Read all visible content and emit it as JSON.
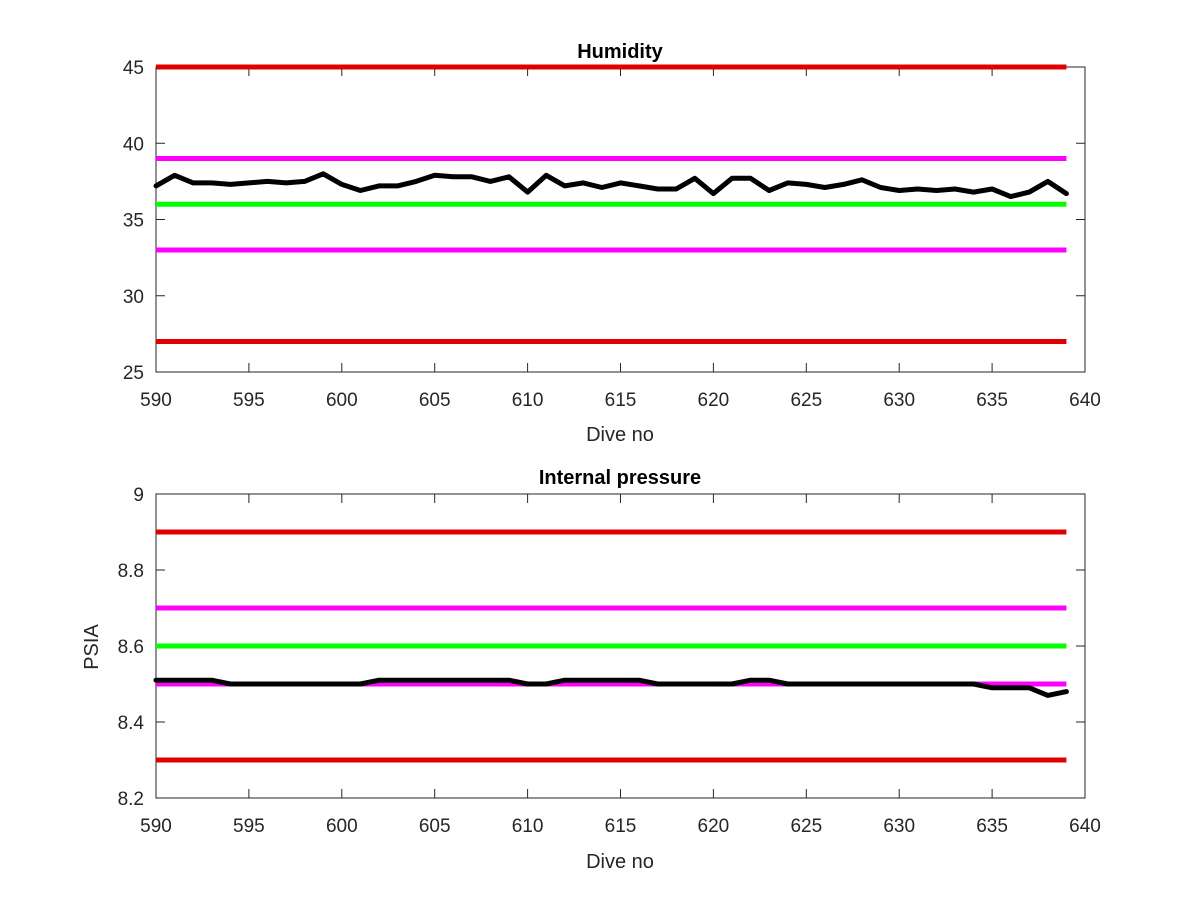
{
  "chart_data": [
    {
      "type": "line",
      "title": "Humidity",
      "xlabel": "Dive no",
      "ylabel": "",
      "xlim": [
        590,
        640
      ],
      "ylim": [
        25,
        45
      ],
      "xticks": [
        590,
        595,
        600,
        605,
        610,
        615,
        620,
        625,
        630,
        635,
        640
      ],
      "yticks": [
        25,
        30,
        35,
        40,
        45
      ],
      "grid": false,
      "series": [
        {
          "color": "#000000",
          "x": [
            590,
            591,
            592,
            593,
            594,
            595,
            596,
            597,
            598,
            599,
            600,
            601,
            602,
            603,
            604,
            605,
            606,
            607,
            608,
            609,
            610,
            611,
            612,
            613,
            614,
            615,
            616,
            617,
            618,
            619,
            620,
            621,
            622,
            623,
            624,
            625,
            626,
            627,
            628,
            629,
            630,
            631,
            632,
            633,
            634,
            635,
            636,
            637,
            638,
            639
          ],
          "values": [
            37.2,
            37.9,
            37.4,
            37.4,
            37.3,
            37.4,
            37.5,
            37.4,
            37.5,
            38.0,
            37.3,
            36.9,
            37.2,
            37.2,
            37.5,
            37.9,
            37.8,
            37.8,
            37.5,
            37.8,
            36.8,
            37.9,
            37.2,
            37.4,
            37.1,
            37.4,
            37.2,
            37.0,
            37.0,
            37.7,
            36.7,
            37.7,
            37.7,
            36.9,
            37.4,
            37.3,
            37.1,
            37.3,
            37.6,
            37.1,
            36.9,
            37.0,
            36.9,
            37.0,
            36.8,
            37.0,
            36.5,
            36.8,
            37.5,
            36.7
          ]
        }
      ],
      "hlines": [
        {
          "y": 45,
          "color": "#e00000"
        },
        {
          "y": 39,
          "color": "#ff00ff"
        },
        {
          "y": 36,
          "color": "#00ff00"
        },
        {
          "y": 33,
          "color": "#ff00ff"
        },
        {
          "y": 27,
          "color": "#e00000"
        }
      ]
    },
    {
      "type": "line",
      "title": "Internal pressure",
      "xlabel": "Dive no",
      "ylabel": "PSIA",
      "xlim": [
        590,
        640
      ],
      "ylim": [
        8.2,
        9
      ],
      "xticks": [
        590,
        595,
        600,
        605,
        610,
        615,
        620,
        625,
        630,
        635,
        640
      ],
      "yticks": [
        8.2,
        8.4,
        8.6,
        8.8,
        9
      ],
      "grid": false,
      "series": [
        {
          "color": "#000000",
          "x": [
            590,
            591,
            592,
            593,
            594,
            595,
            596,
            597,
            598,
            599,
            600,
            601,
            602,
            603,
            604,
            605,
            606,
            607,
            608,
            609,
            610,
            611,
            612,
            613,
            614,
            615,
            616,
            617,
            618,
            619,
            620,
            621,
            622,
            623,
            624,
            625,
            626,
            627,
            628,
            629,
            630,
            631,
            632,
            633,
            634,
            635,
            636,
            637,
            638,
            639
          ],
          "values": [
            8.51,
            8.51,
            8.51,
            8.51,
            8.5,
            8.5,
            8.5,
            8.5,
            8.5,
            8.5,
            8.5,
            8.5,
            8.51,
            8.51,
            8.51,
            8.51,
            8.51,
            8.51,
            8.51,
            8.51,
            8.5,
            8.5,
            8.51,
            8.51,
            8.51,
            8.51,
            8.51,
            8.5,
            8.5,
            8.5,
            8.5,
            8.5,
            8.51,
            8.51,
            8.5,
            8.5,
            8.5,
            8.5,
            8.5,
            8.5,
            8.5,
            8.5,
            8.5,
            8.5,
            8.5,
            8.49,
            8.49,
            8.49,
            8.47,
            8.48
          ]
        }
      ],
      "hlines": [
        {
          "y": 8.9,
          "color": "#e00000"
        },
        {
          "y": 8.7,
          "color": "#ff00ff"
        },
        {
          "y": 8.6,
          "color": "#00ff00"
        },
        {
          "y": 8.5,
          "color": "#ff00ff"
        },
        {
          "y": 8.3,
          "color": "#e00000"
        }
      ]
    }
  ]
}
